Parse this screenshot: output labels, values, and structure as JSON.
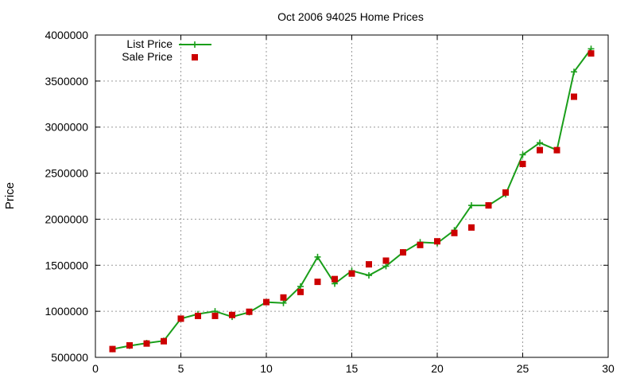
{
  "chart_data": {
    "type": "line",
    "title": "Oct 2006 94025 Home Prices",
    "xlabel": "",
    "ylabel": "Price",
    "xlim": [
      0,
      30
    ],
    "ylim": [
      500000,
      4000000
    ],
    "x_ticks": [
      0,
      5,
      10,
      15,
      20,
      25,
      30
    ],
    "y_ticks": [
      500000,
      1000000,
      1500000,
      2000000,
      2500000,
      3000000,
      3500000,
      4000000
    ],
    "x_tick_labels": [
      "0",
      "5",
      "10",
      "15",
      "20",
      "25",
      "30"
    ],
    "y_tick_labels": [
      "500000",
      "1000000",
      "1500000",
      "2000000",
      "2500000",
      "3000000",
      "3500000",
      "4000000"
    ],
    "grid": true,
    "legend_position": "top-left",
    "series": [
      {
        "name": "List Price",
        "style": "line-with-plus-markers",
        "color": "#1a9e1a",
        "x": [
          1,
          2,
          3,
          4,
          5,
          6,
          7,
          8,
          9,
          10,
          11,
          12,
          13,
          14,
          15,
          16,
          17,
          18,
          19,
          20,
          21,
          22,
          23,
          24,
          25,
          26,
          27,
          28,
          29
        ],
        "values": [
          590000,
          625000,
          655000,
          680000,
          920000,
          970000,
          1000000,
          940000,
          990000,
          1100000,
          1090000,
          1270000,
          1590000,
          1300000,
          1440000,
          1390000,
          1490000,
          1640000,
          1750000,
          1740000,
          1880000,
          2150000,
          2150000,
          2270000,
          2700000,
          2830000,
          2750000,
          3600000,
          3850000
        ]
      },
      {
        "name": "Sale Price",
        "style": "square-markers",
        "color": "#cc0000",
        "x": [
          1,
          2,
          3,
          4,
          5,
          6,
          7,
          8,
          9,
          10,
          11,
          12,
          13,
          14,
          15,
          16,
          17,
          18,
          19,
          20,
          21,
          22,
          23,
          24,
          25,
          26,
          27,
          28,
          29
        ],
        "values": [
          590000,
          630000,
          650000,
          675000,
          920000,
          950000,
          950000,
          960000,
          995000,
          1100000,
          1150000,
          1210000,
          1320000,
          1350000,
          1410000,
          1510000,
          1550000,
          1640000,
          1720000,
          1760000,
          1850000,
          1910000,
          2150000,
          2290000,
          2600000,
          2750000,
          2750000,
          3330000,
          3800000
        ]
      }
    ]
  }
}
